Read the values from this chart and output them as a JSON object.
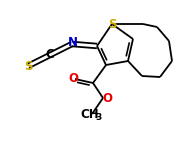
{
  "bg_color": "#ffffff",
  "atom_colors": {
    "S": "#ccaa00",
    "N": "#0000cc",
    "O": "#ee0000",
    "C": "#000000"
  },
  "bond_color": "#000000",
  "figsize": [
    1.79,
    1.51
  ],
  "dpi": 100
}
